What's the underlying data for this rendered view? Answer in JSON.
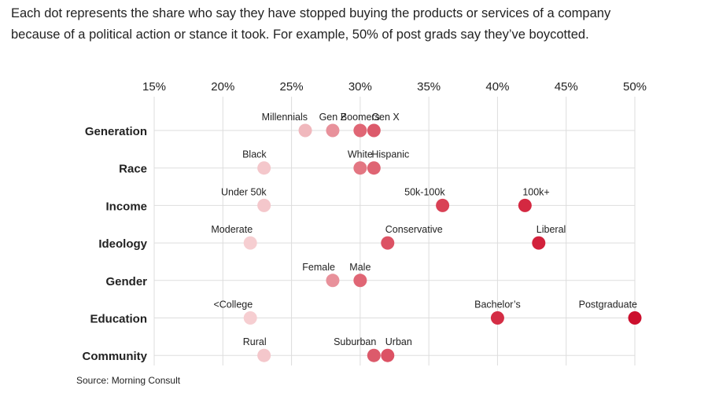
{
  "subtitle_line1": "Each dot represents the share who say they have stopped buying the products or services of a company",
  "subtitle_line2": "because of a political action or stance it took. For example, 50% of post grads say they’ve boycotted.",
  "source": "Source: Morning Consult",
  "colors": {
    "grid": "#dddddd",
    "text": "#222222"
  },
  "chart_data": {
    "type": "scatter",
    "xlim": [
      15,
      50
    ],
    "x_ticks": [
      15,
      20,
      25,
      30,
      35,
      40,
      45,
      50
    ],
    "x_tick_suffix": "%",
    "categories": [
      "Generation",
      "Race",
      "Income",
      "Ideology",
      "Gender",
      "Education",
      "Community"
    ],
    "points": [
      {
        "category": "Generation",
        "label": "Millennials",
        "value": 26,
        "color": "#f0b8bd",
        "label_align": "end"
      },
      {
        "category": "Generation",
        "label": "Gen Z",
        "value": 28,
        "color": "#e8919b",
        "label_align": "middle"
      },
      {
        "category": "Generation",
        "label": "Boomers",
        "value": 30,
        "color": "#e06675",
        "label_align": "middle"
      },
      {
        "category": "Generation",
        "label": "Gen X",
        "value": 31,
        "color": "#dc5a6b",
        "label_align": "start"
      },
      {
        "category": "Race",
        "label": "Black",
        "value": 23,
        "color": "#f4c7cb",
        "label_align": "end"
      },
      {
        "category": "Race",
        "label": "White",
        "value": 30,
        "color": "#e37682",
        "label_align": "middle"
      },
      {
        "category": "Race",
        "label": "Hispanic",
        "value": 31,
        "color": "#df6473",
        "label_align": "start"
      },
      {
        "category": "Income",
        "label": "Under 50k",
        "value": 23,
        "color": "#f4c7cb",
        "label_align": "end"
      },
      {
        "category": "Income",
        "label": "50k-100k",
        "value": 36,
        "color": "#d94155",
        "label_align": "end"
      },
      {
        "category": "Income",
        "label": "100k+",
        "value": 42,
        "color": "#d42841",
        "label_align": "start"
      },
      {
        "category": "Ideology",
        "label": "Moderate",
        "value": 22,
        "color": "#f6ced1",
        "label_align": "end"
      },
      {
        "category": "Ideology",
        "label": "Conservative",
        "value": 32,
        "color": "#dc5264",
        "label_align": "start"
      },
      {
        "category": "Ideology",
        "label": "Liberal",
        "value": 43,
        "color": "#d2213b",
        "label_align": "start"
      },
      {
        "category": "Gender",
        "label": "Female",
        "value": 28,
        "color": "#e8919b",
        "label_align": "end"
      },
      {
        "category": "Gender",
        "label": "Male",
        "value": 30,
        "color": "#e06675",
        "label_align": "middle"
      },
      {
        "category": "Education",
        "label": "<College",
        "value": 22,
        "color": "#f6ced1",
        "label_align": "end"
      },
      {
        "category": "Education",
        "label": "Bachelor’s",
        "value": 40,
        "color": "#d42d45",
        "label_align": "middle"
      },
      {
        "category": "Education",
        "label": "Postgraduate",
        "value": 50,
        "color": "#cc0f2d",
        "label_align": "end"
      },
      {
        "category": "Community",
        "label": "Rural",
        "value": 23,
        "color": "#f4c7cb",
        "label_align": "end"
      },
      {
        "category": "Community",
        "label": "Suburban",
        "value": 31,
        "color": "#dc5a6b",
        "label_align": "end"
      },
      {
        "category": "Community",
        "label": "Urban",
        "value": 32,
        "color": "#dc5264",
        "label_align": "start"
      }
    ]
  }
}
